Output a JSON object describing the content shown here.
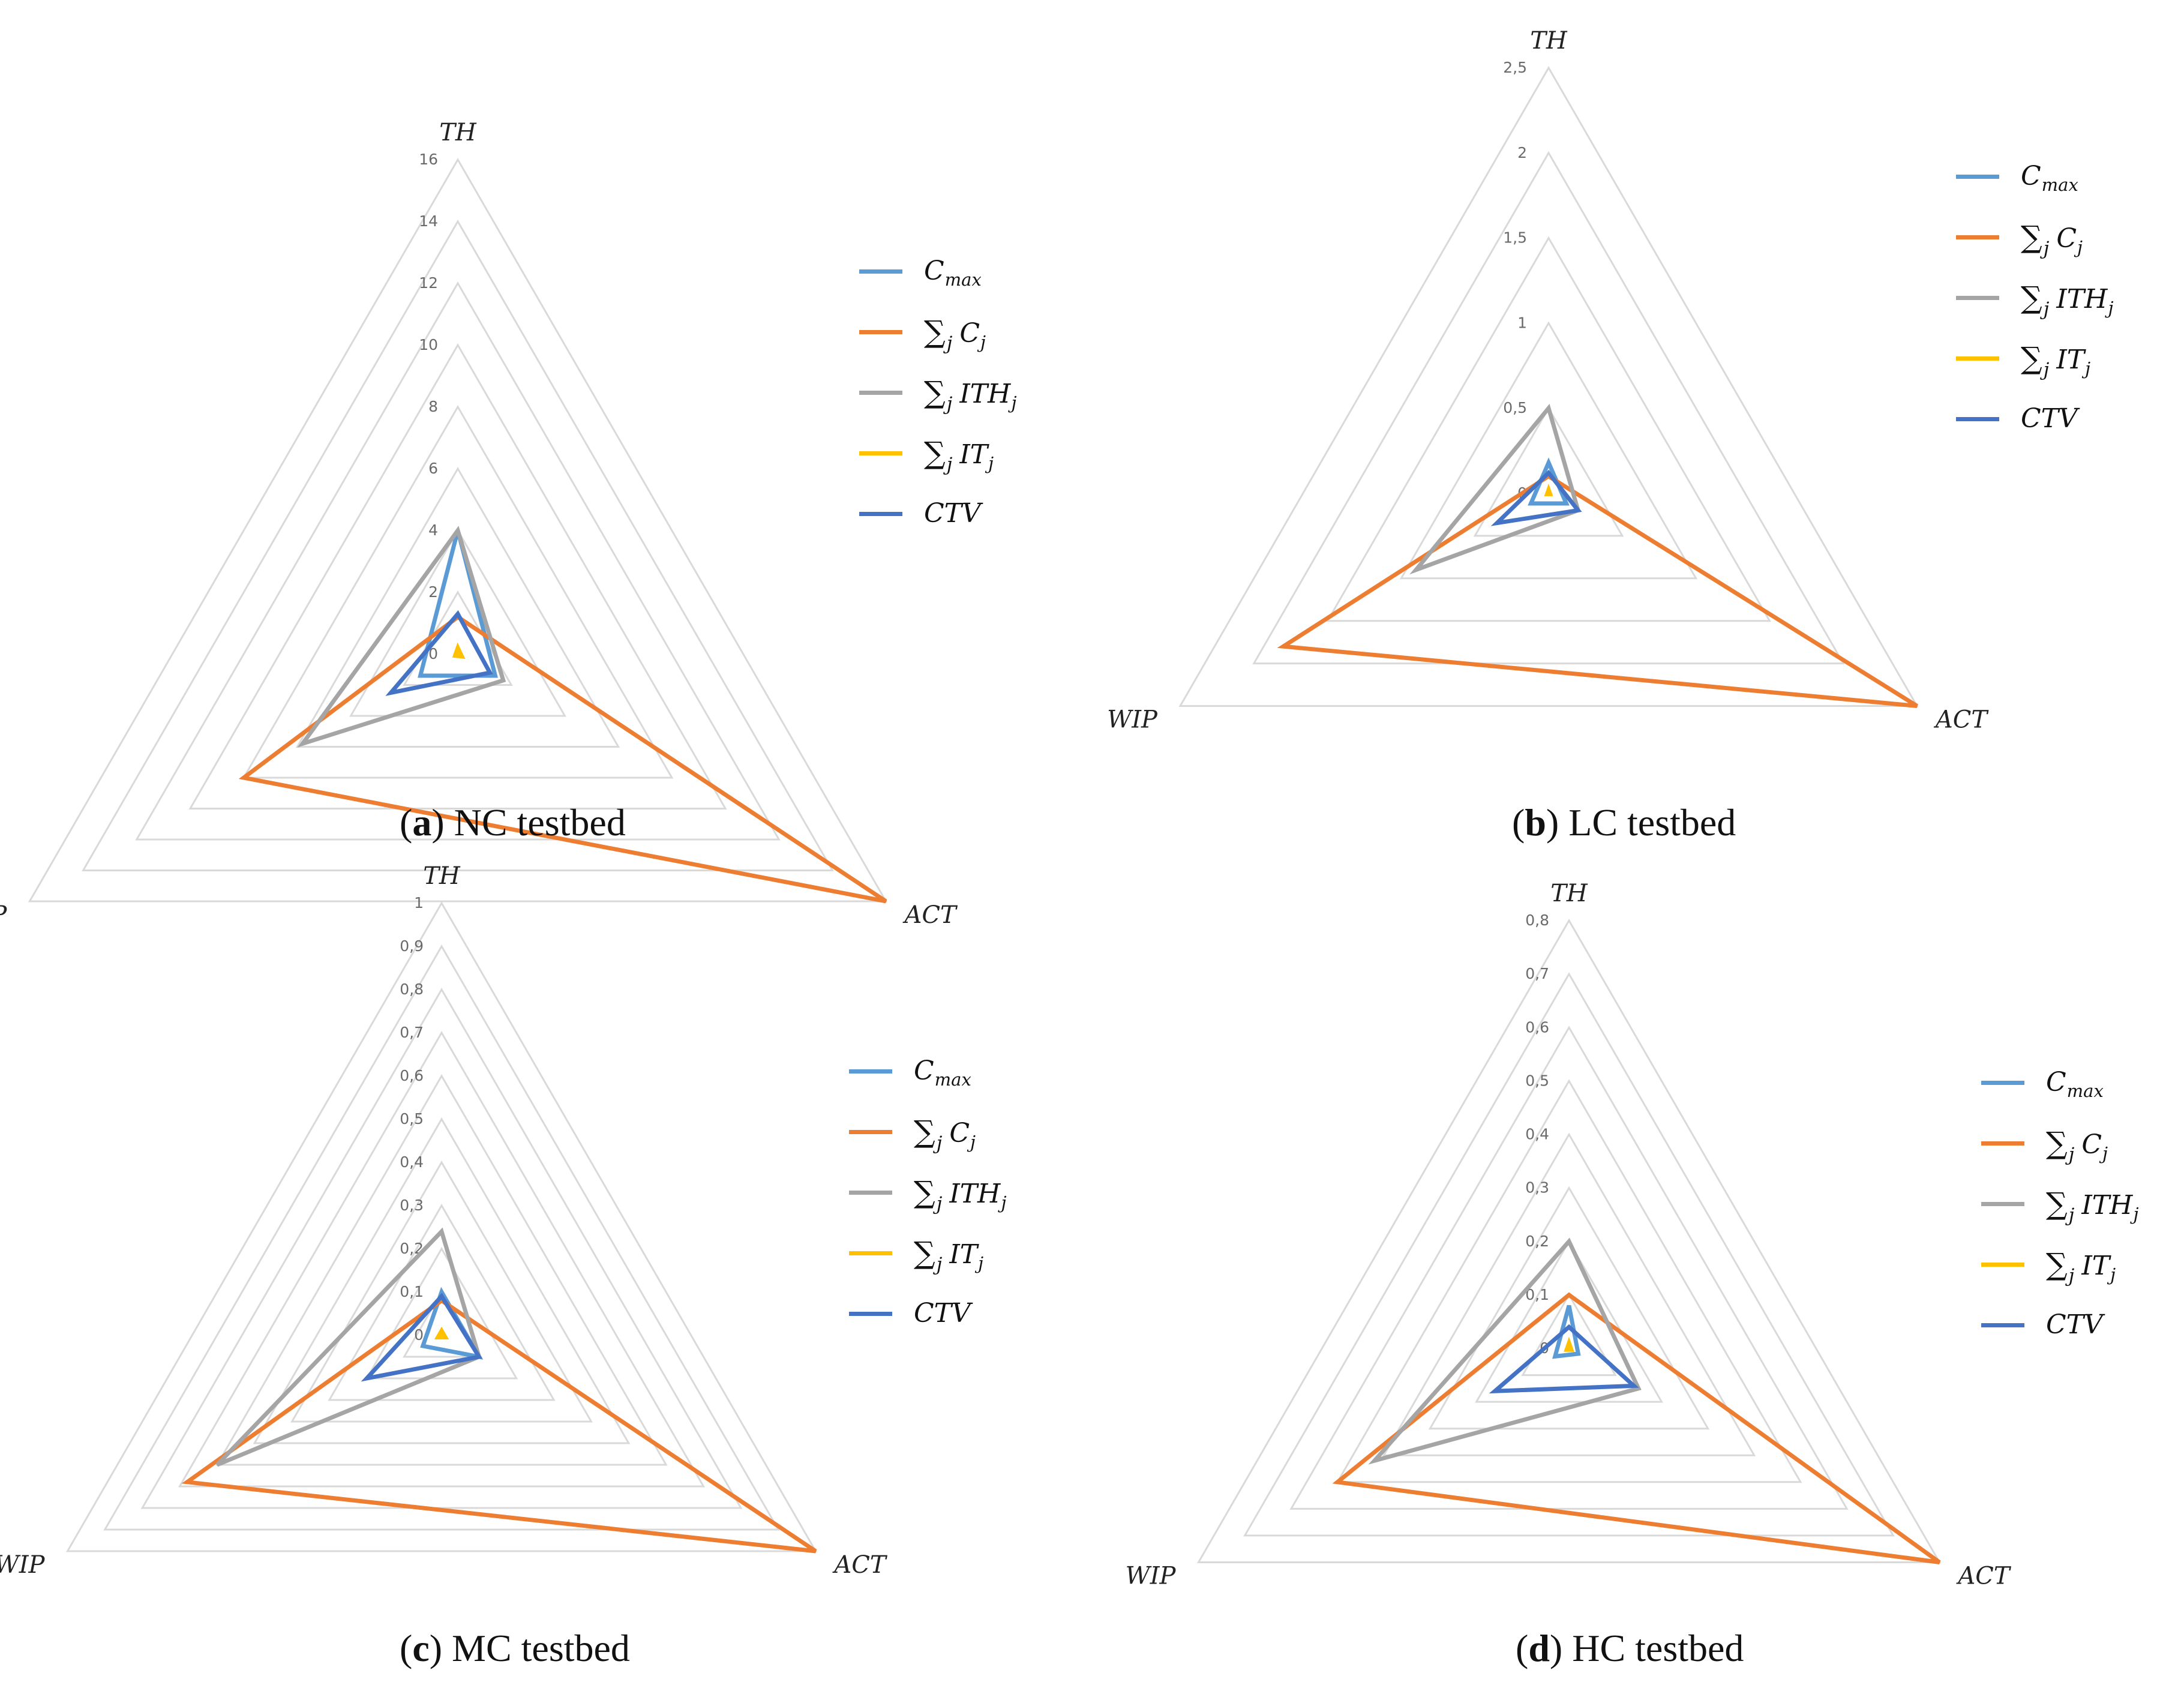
{
  "legend": [
    {
      "key": "cmax",
      "main": "C",
      "sub": "max",
      "sum": false,
      "color": "#5B9BD5"
    },
    {
      "key": "sumc",
      "main": "C",
      "sub": "j",
      "sum": true,
      "color": "#ED7D31"
    },
    {
      "key": "sumith",
      "main": "ITH",
      "sub": "j",
      "sum": true,
      "color": "#A5A5A5"
    },
    {
      "key": "sumit",
      "main": "IT",
      "sub": "j",
      "sum": true,
      "color": "#FFC000"
    },
    {
      "key": "ctv",
      "main": "CTV",
      "sub": "",
      "sum": false,
      "color": "#4472C4"
    }
  ],
  "sum_symbol": "∑",
  "chart_data": [
    {
      "type": "radar",
      "panel_letter": "a",
      "caption": "NC testbed",
      "axes": [
        "TH",
        "ACT",
        "WIP"
      ],
      "scale_max": 16,
      "ticks": [
        "0",
        "2",
        "4",
        "6",
        "8",
        "10",
        "12",
        "14",
        "16"
      ],
      "series": [
        {
          "name": "C_max",
          "values": [
            4.0,
            1.4,
            1.4
          ]
        },
        {
          "name": "∑_j C_j",
          "values": [
            1.2,
            16.0,
            8.0
          ]
        },
        {
          "name": "∑_j ITH_j",
          "values": [
            4.0,
            1.7,
            5.8
          ]
        },
        {
          "name": "∑_j IT_j",
          "values": [
            0.2,
            0.15,
            0.1
          ]
        },
        {
          "name": "CTV",
          "values": [
            1.3,
            1.2,
            2.5
          ]
        }
      ]
    },
    {
      "type": "radar",
      "panel_letter": "b",
      "caption": "LC testbed",
      "axes": [
        "TH",
        "ACT",
        "WIP"
      ],
      "scale_max": 2.5,
      "ticks": [
        "0",
        "0,5",
        "1",
        "1,5",
        "2",
        "2,5"
      ],
      "series": [
        {
          "name": "C_max",
          "values": [
            0.18,
            0.12,
            0.12
          ]
        },
        {
          "name": "∑_j C_j",
          "values": [
            0.1,
            2.5,
            1.8
          ]
        },
        {
          "name": "∑_j ITH_j",
          "values": [
            0.5,
            0.2,
            0.9
          ]
        },
        {
          "name": "∑_j IT_j",
          "values": [
            0.02,
            0.01,
            0.01
          ]
        },
        {
          "name": "CTV",
          "values": [
            0.12,
            0.2,
            0.35
          ]
        }
      ]
    },
    {
      "type": "radar",
      "panel_letter": "c",
      "caption": "MC testbed",
      "axes": [
        "TH",
        "ACT",
        "WIP"
      ],
      "scale_max": 1,
      "ticks": [
        "0",
        "0,1",
        "0,2",
        "0,3",
        "0,4",
        "0,5",
        "0,6",
        "0,7",
        "0,8",
        "0,9",
        "1"
      ],
      "series": [
        {
          "name": "C_max",
          "values": [
            0.1,
            0.1,
            0.05
          ]
        },
        {
          "name": "∑_j C_j",
          "values": [
            0.08,
            1.0,
            0.68
          ]
        },
        {
          "name": "∑_j ITH_j",
          "values": [
            0.24,
            0.1,
            0.6
          ]
        },
        {
          "name": "∑_j IT_j",
          "values": [
            0.01,
            0.01,
            0.01
          ]
        },
        {
          "name": "CTV",
          "values": [
            0.09,
            0.1,
            0.2
          ]
        }
      ]
    },
    {
      "type": "radar",
      "panel_letter": "d",
      "caption": "HC testbed",
      "axes": [
        "TH",
        "ACT",
        "WIP"
      ],
      "scale_max": 0.8,
      "ticks": [
        "0",
        "0,1",
        "0,2",
        "0,3",
        "0,4",
        "0,5",
        "0,6",
        "0,7",
        "0,8"
      ],
      "series": [
        {
          "name": "C_max",
          "values": [
            0.08,
            0.02,
            0.03
          ]
        },
        {
          "name": "∑_j C_j",
          "values": [
            0.1,
            0.8,
            0.5
          ]
        },
        {
          "name": "∑_j ITH_j",
          "values": [
            0.2,
            0.15,
            0.42
          ]
        },
        {
          "name": "∑_j IT_j",
          "values": [
            0.01,
            0.005,
            0.005
          ]
        },
        {
          "name": "CTV",
          "values": [
            0.04,
            0.14,
            0.16
          ]
        }
      ]
    }
  ]
}
